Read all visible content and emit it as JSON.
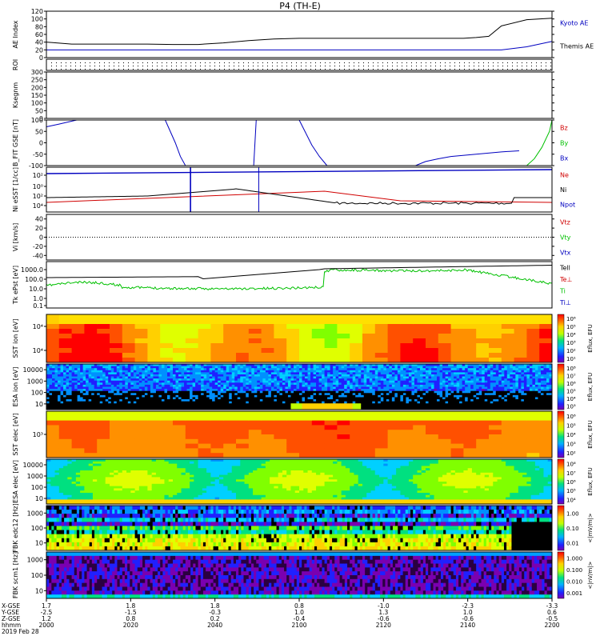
{
  "title": "P4 (TH-E)",
  "chart_data": [
    {
      "type": "line",
      "ylabel": "AE Index",
      "ylim": [
        0,
        120
      ],
      "yticks": [
        0,
        20,
        40,
        60,
        80,
        100,
        120
      ],
      "legend": [
        {
          "name": "Kyoto AE",
          "color": "#0000c0"
        },
        {
          "name": "Themis AE",
          "color": "#000000"
        }
      ],
      "x": [
        2000,
        2010,
        2020,
        2030,
        2040,
        2050,
        2060,
        2070,
        2080,
        2090,
        2100,
        2110,
        2120,
        2130,
        2140,
        2148,
        2150,
        2155,
        2160,
        2165,
        2170,
        2175,
        2180,
        2190,
        2200
      ],
      "series": [
        {
          "name": "Kyoto AE",
          "color": "#0000c0",
          "values": [
            20,
            20,
            20,
            20,
            20,
            20,
            20,
            20,
            20,
            20,
            20,
            20,
            20,
            20,
            20,
            20,
            20,
            20,
            20,
            20,
            20,
            20,
            20,
            28,
            42
          ]
        },
        {
          "name": "Themis AE",
          "color": "#000000",
          "values": [
            40,
            35,
            35,
            35,
            35,
            34,
            34,
            38,
            44,
            48,
            50,
            50,
            50,
            50,
            50,
            50,
            50,
            50,
            50,
            50,
            52,
            55,
            82,
            98,
            102
          ]
        }
      ]
    },
    {
      "type": "heatmap",
      "ylabel": "ROI",
      "ylim": [
        0,
        1
      ]
    },
    {
      "type": "line",
      "ylabel": "Ksegnm",
      "ylim": [
        0,
        300
      ],
      "yticks": [
        0,
        50,
        100,
        150,
        200,
        250,
        300
      ]
    },
    {
      "type": "line",
      "ylabel": "B_FIT GSE [nT]",
      "ylim": [
        -100,
        100
      ],
      "yticks": [
        -100,
        -50,
        0,
        50,
        100
      ],
      "legend": [
        {
          "name": "Bz",
          "color": "#d00000"
        },
        {
          "name": "By",
          "color": "#00c000"
        },
        {
          "name": "Bx",
          "color": "#0000c0"
        }
      ]
    },
    {
      "type": "line",
      "ylabel": "Ni eSST [1/cc]",
      "scale": "log",
      "ylim": [
        0.001,
        100000
      ],
      "yticks": [
        "10²",
        "10⁰",
        "10²",
        "10⁴"
      ],
      "legend": [
        {
          "name": "Ne",
          "color": "#d00000"
        },
        {
          "name": "Ni",
          "color": "#000000"
        },
        {
          "name": "Npot",
          "color": "#0000c0"
        }
      ]
    },
    {
      "type": "line",
      "ylabel": "Vi [km/s]",
      "ylim": [
        -50,
        50
      ],
      "yticks": [
        -40,
        -20,
        0,
        20,
        40
      ],
      "legend": [
        {
          "name": "Vtz",
          "color": "#d00000"
        },
        {
          "name": "Vty",
          "color": "#00c000"
        },
        {
          "name": "Vtx",
          "color": "#0000c0"
        }
      ]
    },
    {
      "type": "line",
      "ylabel": "Tk ePst [eV]",
      "scale": "log",
      "yticks": [
        "1000.0",
        "100.0",
        "10.0",
        "1.0",
        "0.1"
      ],
      "legend": [
        {
          "name": "Tell",
          "color": "#000000"
        },
        {
          "name": "Te⊥",
          "color": "#d00000"
        },
        {
          "name": "Ti",
          "color": "#00c000"
        },
        {
          "name": "Ti⊥",
          "color": "#0000c0"
        }
      ]
    },
    {
      "type": "heatmap",
      "ylabel": "SST ion [eV]",
      "yticks": [
        "10⁴",
        "10⁴"
      ],
      "colorbar": {
        "label": "Eflux, EFU",
        "ticks": [
          "10⁶",
          "10⁵",
          "10⁴",
          "10³",
          "10²",
          "10¹"
        ]
      }
    },
    {
      "type": "heatmap",
      "ylabel": "ESA ion [eV]",
      "yticks": [
        "10000",
        "1000",
        "100",
        "10"
      ],
      "colorbar": {
        "label": "Eflux, EFU",
        "ticks": [
          "10⁸",
          "10⁷",
          "10⁶",
          "10⁵",
          "10⁴",
          "10³"
        ]
      }
    },
    {
      "type": "heatmap",
      "ylabel": "SST elec [eV]",
      "yticks": [
        "10³"
      ],
      "colorbar": {
        "label": "Eflux, EFU",
        "ticks": [
          "10⁶",
          "10⁵",
          "10⁴",
          "10³",
          "10²"
        ]
      }
    },
    {
      "type": "heatmap",
      "ylabel": "ESA elec [eV]",
      "yticks": [
        "10000",
        "1000",
        "100",
        "10"
      ],
      "colorbar": {
        "label": "Eflux, EFU",
        "ticks": [
          "10⁸",
          "10⁷",
          "10⁶",
          "10⁵",
          "10⁴"
        ]
      }
    },
    {
      "type": "heatmap",
      "ylabel": "FBK edc12 [Hz]",
      "yticks": [
        "1000",
        "100",
        "10"
      ],
      "colorbar": {
        "label": "<|mV/m|>",
        "ticks": [
          "1.00",
          "0.10",
          "0.01"
        ]
      }
    },
    {
      "type": "heatmap",
      "ylabel": "FBK scm1 [Hz]",
      "yticks": [
        "1000",
        "100",
        "10"
      ],
      "colorbar": {
        "label": "<|nV/m|>",
        "ticks": [
          "1.000",
          "0.100",
          "0.010",
          "0.001"
        ]
      }
    }
  ],
  "xaxis": {
    "row_labels": [
      "X-GSE",
      "Y-GSE",
      "Z-GSE",
      "hhmm",
      "2019 Feb 28"
    ],
    "ticks": [
      {
        "v": [
          "1.7",
          "-2.5",
          "1.2",
          "2000"
        ]
      },
      {
        "v": [
          "1.8",
          "-1.5",
          "0.8",
          "2020"
        ]
      },
      {
        "v": [
          "1.8",
          "-0.3",
          "0.2",
          "2040"
        ]
      },
      {
        "v": [
          "0.8",
          "1.0",
          "-0.4",
          "2100"
        ]
      },
      {
        "v": [
          "-1.0",
          "1.3",
          "-0.6",
          "2120"
        ]
      },
      {
        "v": [
          "-2.3",
          "1.0",
          "-0.6",
          "2140"
        ]
      },
      {
        "v": [
          "-3.3",
          "0.6",
          "-0.5",
          "2200"
        ]
      }
    ]
  }
}
